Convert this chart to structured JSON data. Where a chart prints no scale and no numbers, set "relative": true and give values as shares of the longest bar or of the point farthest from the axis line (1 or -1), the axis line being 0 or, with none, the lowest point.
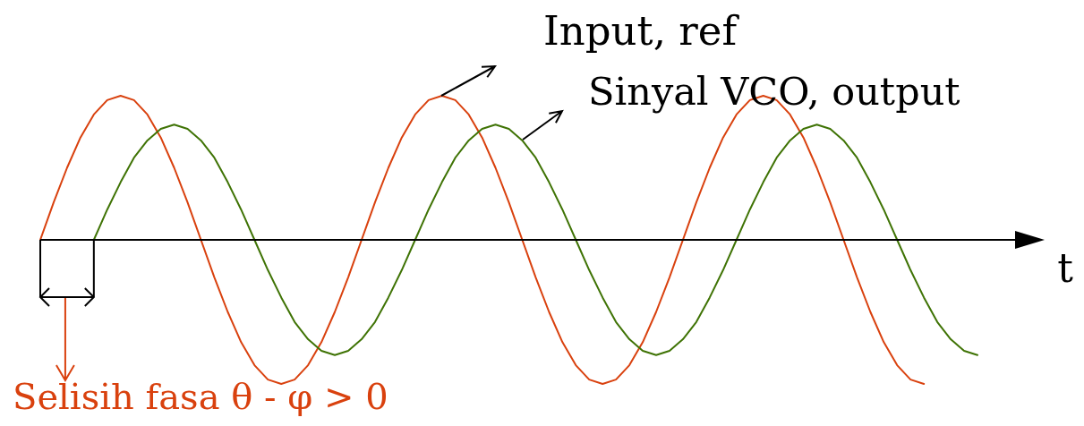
{
  "chart_data": {
    "type": "line",
    "relative": true,
    "xlabel": "t",
    "categories": [
      null,
      null,
      null,
      null,
      null,
      null,
      null,
      null,
      null,
      null,
      null,
      null,
      null,
      null,
      null,
      null,
      null,
      null,
      null,
      null,
      null,
      null,
      null,
      null,
      null,
      null,
      null,
      null,
      null,
      null,
      null,
      null,
      null,
      null,
      null,
      null,
      null,
      null,
      null,
      null,
      null,
      null,
      null,
      null,
      null,
      null,
      null,
      null,
      null,
      null,
      null,
      null,
      null,
      null,
      null,
      null,
      null,
      null,
      null,
      null,
      null,
      null,
      null,
      null,
      null,
      null,
      null,
      null,
      null,
      null,
      null
    ],
    "series": [
      {
        "name": "Input, ref",
        "color": "#d9410e",
        "values": [
          0,
          0.26,
          0.5,
          0.71,
          0.87,
          0.97,
          1,
          0.97,
          0.87,
          0.71,
          0.5,
          0.26,
          0,
          -0.26,
          -0.5,
          -0.71,
          -0.87,
          -0.97,
          -1,
          -0.97,
          -0.87,
          -0.71,
          -0.5,
          -0.26,
          0,
          0.26,
          0.5,
          0.71,
          0.87,
          0.97,
          1,
          0.97,
          0.87,
          0.71,
          0.5,
          0.26,
          0,
          -0.26,
          -0.5,
          -0.71,
          -0.87,
          -0.97,
          -1,
          -0.97,
          -0.87,
          -0.71,
          -0.5,
          -0.26,
          0,
          0.26,
          0.5,
          0.71,
          0.87,
          0.97,
          1,
          0.97,
          0.87,
          0.71,
          0.5,
          0.26,
          0,
          -0.26,
          -0.5,
          -0.71,
          -0.87,
          -0.97,
          -1,
          null,
          null,
          null,
          null
        ]
      },
      {
        "name": "Sinyal VCO, output",
        "color": "#3f7305",
        "values": [
          null,
          null,
          null,
          null,
          0,
          0.21,
          0.4,
          0.57,
          0.69,
          0.77,
          0.8,
          0.77,
          0.69,
          0.57,
          0.4,
          0.21,
          0,
          -0.21,
          -0.4,
          -0.57,
          -0.69,
          -0.77,
          -0.8,
          -0.77,
          -0.69,
          -0.57,
          -0.4,
          -0.21,
          0,
          0.21,
          0.4,
          0.57,
          0.69,
          0.77,
          0.8,
          0.77,
          0.69,
          0.57,
          0.4,
          0.21,
          0,
          -0.21,
          -0.4,
          -0.57,
          -0.69,
          -0.77,
          -0.8,
          -0.77,
          -0.69,
          -0.57,
          -0.4,
          -0.21,
          0,
          0.21,
          0.4,
          0.57,
          0.69,
          0.77,
          0.8,
          0.77,
          0.69,
          0.57,
          0.4,
          0.21,
          0,
          -0.21,
          -0.4,
          -0.57,
          -0.69,
          -0.77,
          -0.8
        ]
      }
    ],
    "annotations": [
      "Selisih fasa θ - φ > 0"
    ]
  }
}
